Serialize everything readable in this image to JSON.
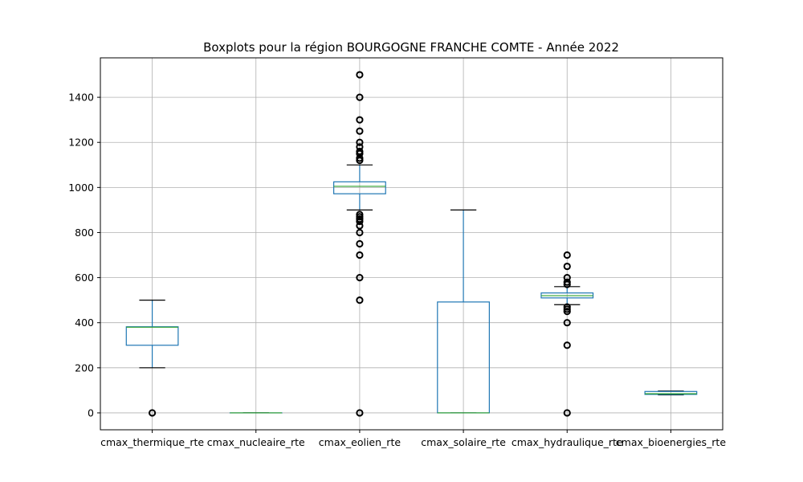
{
  "chart_data": {
    "type": "box",
    "title": "Boxplots pour la région BOURGOGNE FRANCHE COMTE - Année 2022",
    "xlabel": "",
    "ylabel": "",
    "ylim": [
      -75,
      1575
    ],
    "yticks": [
      0,
      200,
      400,
      600,
      800,
      1000,
      1200,
      1400
    ],
    "grid": true,
    "colors": {
      "box": "#1f77b4",
      "median": "#2ca02c",
      "cap": "#000000",
      "grid": "#b0b0b0"
    },
    "categories": [
      "cmax_thermique_rte",
      "cmax_nucleaire_rte",
      "cmax_eolien_rte",
      "cmax_solaire_rte",
      "cmax_hydraulique_rte",
      "cmax_bioenergies_rte"
    ],
    "boxes": [
      {
        "name": "cmax_thermique_rte",
        "whisker_low": 200,
        "q1": 300,
        "median": 380,
        "q3": 382,
        "whisker_high": 500,
        "outliers": [
          0
        ]
      },
      {
        "name": "cmax_nucleaire_rte",
        "whisker_low": 0,
        "q1": 0,
        "median": 0,
        "q3": 0,
        "whisker_high": 0,
        "outliers": []
      },
      {
        "name": "cmax_eolien_rte",
        "whisker_low": 900,
        "q1": 972,
        "median": 1005,
        "q3": 1025,
        "whisker_high": 1100,
        "outliers": [
          0,
          500,
          600,
          700,
          750,
          800,
          830,
          850,
          860,
          870,
          880,
          1120,
          1130,
          1150,
          1160,
          1180,
          1200,
          1250,
          1300,
          1400,
          1500
        ]
      },
      {
        "name": "cmax_solaire_rte",
        "whisker_low": 0,
        "q1": 0,
        "median": 0,
        "q3": 492,
        "whisker_high": 900,
        "outliers": []
      },
      {
        "name": "cmax_hydraulique_rte",
        "whisker_low": 480,
        "q1": 510,
        "median": 520,
        "q3": 532,
        "whisker_high": 560,
        "outliers": [
          0,
          300,
          400,
          450,
          460,
          470,
          570,
          580,
          600,
          650,
          700
        ]
      },
      {
        "name": "cmax_bioenergies_rte",
        "whisker_low": 80,
        "q1": 82,
        "median": 85,
        "q3": 95,
        "whisker_high": 97,
        "outliers": []
      }
    ]
  }
}
